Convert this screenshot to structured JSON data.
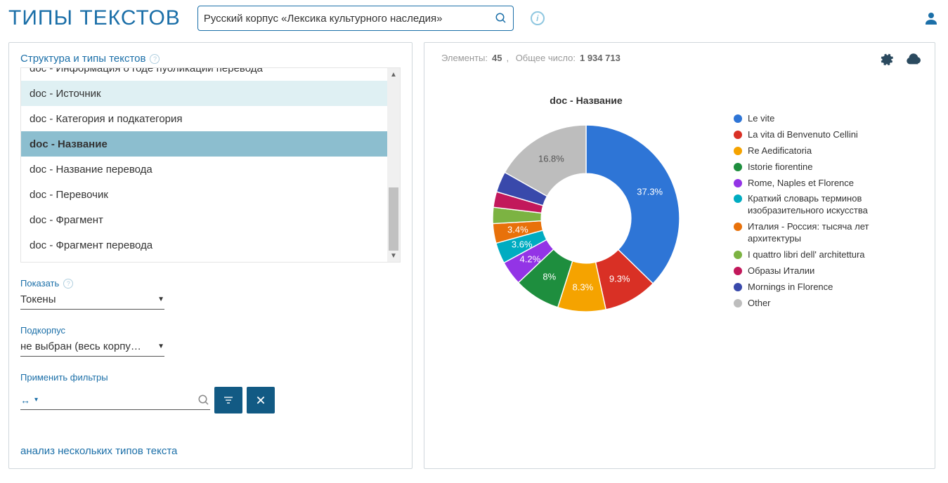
{
  "header": {
    "title": "ТИПЫ ТЕКСТОВ",
    "search_value": "Русский корпус «Лексика культурного наследия»"
  },
  "left": {
    "heading": "Структура и типы текстов",
    "list_items": [
      {
        "label": "doc - Информация о годе пуоликации перевода",
        "state": "clip-top"
      },
      {
        "label": "doc - Источник",
        "state": "highlighted"
      },
      {
        "label": "doc - Категория и подкатегория",
        "state": ""
      },
      {
        "label": "doc - Название",
        "state": "selected"
      },
      {
        "label": "doc - Название перевода",
        "state": ""
      },
      {
        "label": "doc - Перевочик",
        "state": ""
      },
      {
        "label": "doc - Фрагмент",
        "state": ""
      },
      {
        "label": "doc - Фрагмент перевода",
        "state": ""
      }
    ],
    "show_label": "Показать",
    "show_value": "Токены",
    "subcorpus_label": "Подкорпус",
    "subcorpus_value": "не выбран (весь корпу…",
    "filters_label": "Применить фильтры",
    "multi_link": "анализ нескольких типов текста"
  },
  "right": {
    "elements_label": "Элементы:",
    "elements_value": "45",
    "total_label": "Общее число:",
    "total_value": "1 934 713",
    "chart": {
      "title": "doc - Название",
      "type": "donut",
      "inner_radius_ratio": 0.48,
      "slices": [
        {
          "label": "Le vite",
          "value": 37.3,
          "color": "#2e75d6",
          "pct_text": "37.3%"
        },
        {
          "label": "La vita di Benvenuto Cellini",
          "value": 9.3,
          "color": "#d93025",
          "pct_text": "9.3%"
        },
        {
          "label": "Re Aedificatoria",
          "value": 8.3,
          "color": "#f5a300",
          "pct_text": "8.3%"
        },
        {
          "label": "Istorie fiorentine",
          "value": 8.0,
          "color": "#1e8e3e",
          "pct_text": "8%"
        },
        {
          "label": "Rome, Naples et Florence",
          "value": 4.2,
          "color": "#9334e6",
          "pct_text": "4.2%"
        },
        {
          "label": "Краткий словарь терминов изобразительного искусства",
          "value": 3.6,
          "color": "#00acc1",
          "pct_text": "3.6%"
        },
        {
          "label": "Италия - Россия: тысяча лет архитектуры",
          "value": 3.4,
          "color": "#e8710a",
          "pct_text": "3.4%"
        },
        {
          "label": "I quattro libri dell' architettura",
          "value": 2.8,
          "color": "#7cb342",
          "pct_text": ""
        },
        {
          "label": "Образы Италии",
          "value": 2.7,
          "color": "#c2185b",
          "pct_text": ""
        },
        {
          "label": "Mornings in Florence",
          "value": 3.6,
          "color": "#3949ab",
          "pct_text": ""
        },
        {
          "label": "Other",
          "value": 16.8,
          "color": "#bdbdbd",
          "pct_text": "16.8%"
        }
      ],
      "background_color": "#ffffff",
      "legend_font_size": 13,
      "label_font_size": 13
    }
  }
}
